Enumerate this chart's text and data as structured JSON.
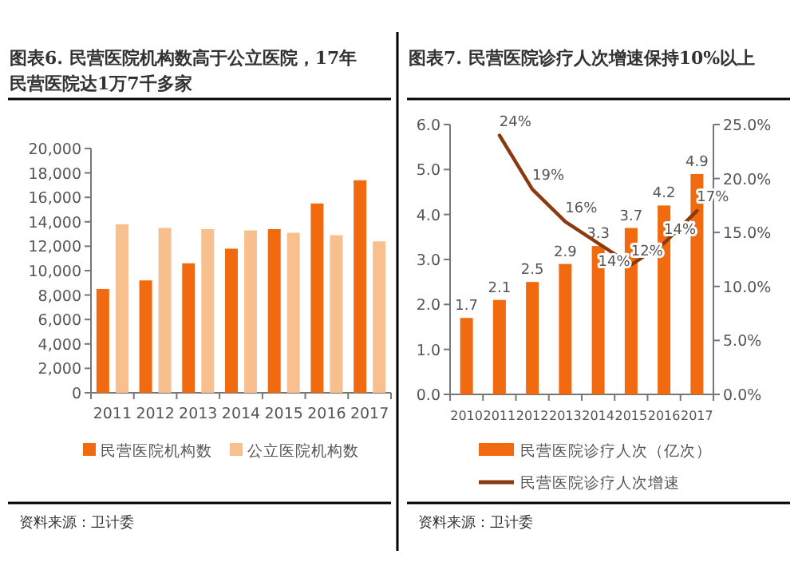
{
  "chart_data": [
    {
      "type": "bar",
      "title": "图表6.  民营医院机构数高于公立医院，17年民营医院达1万7千多家",
      "categories": [
        "2011",
        "2012",
        "2013",
        "2014",
        "2015",
        "2016",
        "2017"
      ],
      "series": [
        {
          "name": "民营医院机构数",
          "color": "#f26a0f",
          "values": [
            8500,
            9200,
            10600,
            11800,
            13400,
            15500,
            17400
          ]
        },
        {
          "name": "公立医院机构数",
          "color": "#f9c08f",
          "values": [
            13800,
            13500,
            13400,
            13300,
            13100,
            12900,
            12400
          ]
        }
      ],
      "ylim": [
        0,
        20000
      ],
      "yticks": [
        {
          "value": 0,
          "label": "0"
        },
        {
          "value": 2000,
          "label": "2,000"
        },
        {
          "value": 4000,
          "label": "4,000"
        },
        {
          "value": 6000,
          "label": "6,000"
        },
        {
          "value": 8000,
          "label": "8,000"
        },
        {
          "value": 10000,
          "label": "10,000"
        },
        {
          "value": 12000,
          "label": "12,000"
        },
        {
          "value": 14000,
          "label": "14,000"
        },
        {
          "value": 16000,
          "label": "16,000"
        },
        {
          "value": 18000,
          "label": "18,000"
        },
        {
          "value": 20000,
          "label": "20,000"
        }
      ],
      "grid": false,
      "legend": "bottom",
      "annotations": [
        "资料来源：卫计委"
      ]
    },
    {
      "type": "bar",
      "title": "图表7.  民营医院诊疗人次增速保持10%以上",
      "categories": [
        "2010",
        "2011",
        "2012",
        "2013",
        "2014",
        "2015",
        "2016",
        "2017"
      ],
      "series": [
        {
          "name": "民营医院诊疗人次（亿次）",
          "color": "#f26a0f",
          "values": [
            1.7,
            2.1,
            2.5,
            2.9,
            3.3,
            3.7,
            4.2,
            4.9
          ],
          "value_labels": [
            "1.7",
            "2.1",
            "2.5",
            "2.9",
            "3.3",
            "3.7",
            "4.2",
            "4.9"
          ]
        },
        {
          "name": "民营医院诊疗人次增速",
          "type": "line",
          "axis": "y2",
          "color": "#8b3a0f",
          "values": [
            null,
            24,
            19,
            16,
            14,
            12,
            14,
            17
          ],
          "value_labels": [
            null,
            "24%",
            "19%",
            "16%",
            "14%",
            "12%",
            "14%",
            "17%"
          ]
        }
      ],
      "ylim": [
        0,
        6
      ],
      "yticks": [
        {
          "value": 0,
          "label": "0.0"
        },
        {
          "value": 1,
          "label": "1.0"
        },
        {
          "value": 2,
          "label": "2.0"
        },
        {
          "value": 3,
          "label": "3.0"
        },
        {
          "value": 4,
          "label": "4.0"
        },
        {
          "value": 5,
          "label": "5.0"
        },
        {
          "value": 6,
          "label": "6.0"
        }
      ],
      "y2lim": [
        0,
        25
      ],
      "y2ticks": [
        {
          "value": 0,
          "label": "0.0%"
        },
        {
          "value": 5,
          "label": "5.0%"
        },
        {
          "value": 10,
          "label": "10.0%"
        },
        {
          "value": 15,
          "label": "15.0%"
        },
        {
          "value": 20,
          "label": "20.0%"
        },
        {
          "value": 25,
          "label": "25.0%"
        }
      ],
      "grid": false,
      "legend": "bottom",
      "marker": "none",
      "annotations": [
        "资料来源：卫计委"
      ]
    }
  ]
}
